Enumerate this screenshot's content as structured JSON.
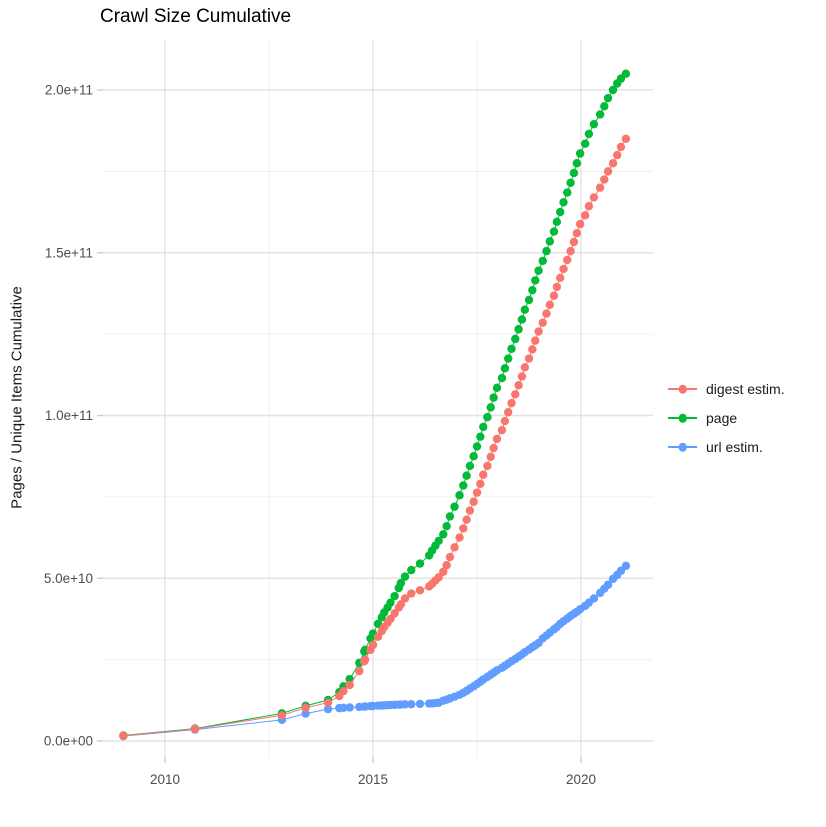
{
  "chart_data": {
    "type": "line",
    "title": "Crawl Size Cumulative",
    "xlabel": "",
    "ylabel": "Pages / Unique Items Cumulative",
    "legend_position": "right",
    "grid": true,
    "background": "#ffffff",
    "x_axis": {
      "ticks": [
        {
          "label": "2010",
          "value": 2010
        },
        {
          "label": "2015",
          "value": 2015
        },
        {
          "label": "2020",
          "value": 2020
        }
      ],
      "minor_values": [
        2012.5,
        2017.5
      ],
      "range": [
        2008.5,
        2021.7
      ]
    },
    "y_axis": {
      "ticks": [
        {
          "label": "0.0e+00",
          "value": 0
        },
        {
          "label": "5.0e+10",
          "value": 50000000000.0
        },
        {
          "label": "1.0e+11",
          "value": 100000000000.0
        },
        {
          "label": "1.5e+11",
          "value": 150000000000.0
        },
        {
          "label": "2.0e+11",
          "value": 200000000000.0
        }
      ],
      "minor_values": [
        25000000000.0,
        75000000000.0,
        125000000000.0,
        175000000000.0
      ],
      "range": [
        -5000000000.0,
        215000000000.0
      ]
    },
    "x": [
      2009.0,
      2010.72,
      2012.81,
      2013.38,
      2013.92,
      2014.19,
      2014.29,
      2014.44,
      2014.67,
      2014.79,
      2014.81,
      2014.94,
      2015.0,
      2015.12,
      2015.21,
      2015.27,
      2015.35,
      2015.42,
      2015.52,
      2015.62,
      2015.67,
      2015.77,
      2015.92,
      2016.13,
      2016.35,
      2016.42,
      2016.5,
      2016.58,
      2016.69,
      2016.77,
      2016.85,
      2016.96,
      2017.08,
      2017.17,
      2017.25,
      2017.33,
      2017.42,
      2017.5,
      2017.58,
      2017.65,
      2017.75,
      2017.83,
      2017.9,
      2017.98,
      2018.1,
      2018.17,
      2018.25,
      2018.33,
      2018.42,
      2018.5,
      2018.58,
      2018.65,
      2018.75,
      2018.83,
      2018.9,
      2018.98,
      2019.08,
      2019.17,
      2019.25,
      2019.35,
      2019.42,
      2019.5,
      2019.58,
      2019.67,
      2019.75,
      2019.83,
      2019.9,
      2019.98,
      2020.1,
      2020.19,
      2020.31,
      2020.46,
      2020.56,
      2020.65,
      2020.77,
      2020.87,
      2020.96,
      2021.08
    ],
    "series": [
      {
        "name": "digest estim.",
        "color": "#F8766D",
        "values": [
          1600000000.0,
          3700000000.0,
          7900000000.0,
          10200000000.0,
          11800000000.0,
          13800000000.0,
          15300000000.0,
          17200000000.0,
          21500000000.0,
          24500000000.0,
          25000000000.0,
          28000000000.0,
          29500000000.0,
          32000000000.0,
          33800000000.0,
          35000000000.0,
          36300000000.0,
          37500000000.0,
          39200000000.0,
          41000000000.0,
          42000000000.0,
          43800000000.0,
          45300000000.0,
          46300000000.0,
          47500000000.0,
          48300000000.0,
          49300000000.0,
          50300000000.0,
          52000000000.0,
          54000000000.0,
          56500000000.0,
          59500000000.0,
          62500000000.0,
          65300000000.0,
          68000000000.0,
          70800000000.0,
          73500000000.0,
          76300000000.0,
          79000000000.0,
          81800000000.0,
          84500000000.0,
          87300000000.0,
          90000000000.0,
          92800000000.0,
          95500000000.0,
          98300000000.0,
          101000000000.0,
          103800000000.0,
          106500000000.0,
          109300000000.0,
          112000000000.0,
          114800000000.0,
          117500000000.0,
          120300000000.0,
          123000000000.0,
          125800000000.0,
          128500000000.0,
          131300000000.0,
          134000000000.0,
          136800000000.0,
          139500000000.0,
          142300000000.0,
          145000000000.0,
          147800000000.0,
          150500000000.0,
          153300000000.0,
          156000000000.0,
          158800000000.0,
          161500000000.0,
          164300000000.0,
          167000000000.0,
          170000000000.0,
          172500000000.0,
          175000000000.0,
          177500000000.0,
          180000000000.0,
          182500000000.0,
          185000000000.0
        ]
      },
      {
        "name": "page",
        "color": "#00BA38",
        "values": [
          1700000000.0,
          3800000000.0,
          8500000000.0,
          10800000000.0,
          12600000000.0,
          15000000000.0,
          16800000000.0,
          19000000000.0,
          24000000000.0,
          27500000000.0,
          28000000000.0,
          31500000000.0,
          33000000000.0,
          36000000000.0,
          38000000000.0,
          39500000000.0,
          41000000000.0,
          42500000000.0,
          44500000000.0,
          47000000000.0,
          48500000000.0,
          50500000000.0,
          52500000000.0,
          54500000000.0,
          57000000000.0,
          58500000000.0,
          60000000000.0,
          61500000000.0,
          63500000000.0,
          66000000000.0,
          69000000000.0,
          72000000000.0,
          75500000000.0,
          78500000000.0,
          81500000000.0,
          84500000000.0,
          87500000000.0,
          90500000000.0,
          93500000000.0,
          96500000000.0,
          99500000000.0,
          102500000000.0,
          105500000000.0,
          108500000000.0,
          111500000000.0,
          114500000000.0,
          117500000000.0,
          120500000000.0,
          123500000000.0,
          126500000000.0,
          129500000000.0,
          132500000000.0,
          135500000000.0,
          138500000000.0,
          141500000000.0,
          144500000000.0,
          147500000000.0,
          150500000000.0,
          153500000000.0,
          156500000000.0,
          159500000000.0,
          162500000000.0,
          165500000000.0,
          168500000000.0,
          171500000000.0,
          174500000000.0,
          177500000000.0,
          180500000000.0,
          183500000000.0,
          186500000000.0,
          189500000000.0,
          192500000000.0,
          195000000000.0,
          197500000000.0,
          200000000000.0,
          202000000000.0,
          203500000000.0,
          205000000000.0
        ]
      },
      {
        "name": "url estim.",
        "color": "#619CFF",
        "values": [
          1500000000.0,
          3500000000.0,
          6500000000.0,
          8400000000.0,
          9800000000.0,
          10100000000.0,
          10200000000.0,
          10300000000.0,
          10450000000.0,
          10550000000.0,
          10600000000.0,
          10700000000.0,
          10750000000.0,
          10850000000.0,
          10900000000.0,
          10950000000.0,
          11000000000.0,
          11050000000.0,
          11100000000.0,
          11150000000.0,
          11200000000.0,
          11250000000.0,
          11300000000.0,
          11400000000.0,
          11500000000.0,
          11550000000.0,
          11650000000.0,
          11750000000.0,
          12400000000.0,
          12700000000.0,
          13100000000.0,
          13600000000.0,
          14200000000.0,
          14800000000.0,
          15400000000.0,
          16100000000.0,
          16800000000.0,
          17500000000.0,
          18200000000.0,
          18900000000.0,
          19700000000.0,
          20400000000.0,
          21000000000.0,
          21700000000.0,
          22500000000.0,
          23100000000.0,
          23800000000.0,
          24500000000.0,
          25200000000.0,
          25900000000.0,
          26600000000.0,
          27300000000.0,
          28100000000.0,
          28800000000.0,
          29400000000.0,
          30100000000.0,
          31500000000.0,
          32400000000.0,
          33300000000.0,
          34300000000.0,
          35000000000.0,
          36000000000.0,
          36800000000.0,
          37600000000.0,
          38400000000.0,
          39100000000.0,
          39700000000.0,
          40500000000.0,
          41500000000.0,
          42500000000.0,
          43800000000.0,
          45500000000.0,
          46800000000.0,
          48000000000.0,
          49800000000.0,
          51000000000.0,
          52300000000.0,
          53800000000.0
        ]
      }
    ],
    "draw_order": [
      2,
      1,
      0
    ],
    "point_radius_px": 4.2
  }
}
